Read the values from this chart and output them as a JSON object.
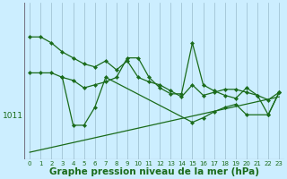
{
  "background_color": "#cceeff",
  "grid_color": "#99bbcc",
  "line_color": "#1a6b1a",
  "marker_color": "#1a6b1a",
  "xlabel": "Graphe pression niveau de la mer (hPa)",
  "xlabel_fontsize": 7.5,
  "ylabel_label": "1011",
  "ylabel_value": 1011,
  "x_ticks": [
    0,
    1,
    2,
    3,
    4,
    5,
    6,
    7,
    8,
    9,
    10,
    11,
    12,
    13,
    14,
    15,
    16,
    17,
    18,
    19,
    20,
    21,
    22,
    23
  ],
  "xlim": [
    -0.5,
    23.5
  ],
  "ylim_min": 1008.0,
  "ylim_max": 1018.5,
  "s1": [
    1016.2,
    1016.2,
    1015.8,
    1015.2,
    1014.8,
    1014.4,
    1014.2,
    1014.6,
    1014.0,
    1014.6,
    1013.5,
    1013.2,
    1013.0,
    1012.6,
    1012.2,
    1013.0,
    1012.3,
    1012.5,
    1012.7,
    1012.7,
    1012.5,
    1012.3,
    1012.0,
    1012.5
  ],
  "s2": [
    1013.8,
    1013.8,
    1013.8,
    1013.5,
    1013.3,
    1012.8,
    1013.0,
    1013.2,
    1013.5,
    1014.8,
    1014.8,
    1013.5,
    1012.8,
    1012.4,
    1012.4,
    1015.8,
    1013.0,
    1012.6,
    1012.3,
    1012.1,
    1012.8,
    1012.3,
    1011.0,
    1012.5
  ],
  "s3_x": [
    3,
    4,
    5,
    6,
    7,
    15,
    16,
    17,
    18,
    19,
    20,
    22,
    23
  ],
  "s3_y": [
    1013.5,
    1010.3,
    1010.3,
    1011.5,
    1013.5,
    1010.5,
    1010.8,
    1011.2,
    1011.5,
    1011.7,
    1011.0,
    1011.0,
    1012.5
  ],
  "trend_x": [
    0,
    23
  ],
  "trend_y": [
    1008.5,
    1012.2
  ]
}
